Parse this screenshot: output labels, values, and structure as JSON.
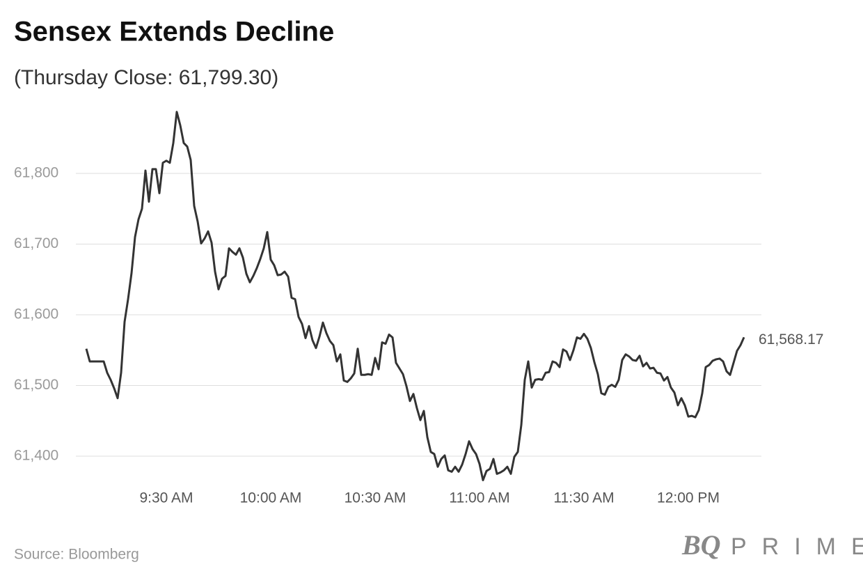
{
  "chart_data": {
    "type": "line",
    "title": "Sensex Extends Decline",
    "subtitle": "(Thursday Close: 61,799.30)",
    "source": "Source: Bloomberg",
    "brand_mark": "BQ",
    "brand_name": "PRIME",
    "end_label": "61,568.17",
    "x": [
      547,
      548,
      549,
      550,
      551,
      552,
      553,
      554,
      555,
      556,
      557,
      558,
      559,
      560,
      561,
      562,
      563,
      564,
      565,
      566,
      567,
      568,
      569,
      570,
      571,
      572,
      573,
      574,
      575,
      576,
      577,
      578,
      579,
      580,
      581,
      582,
      583,
      584,
      585,
      586,
      587,
      588,
      589,
      590,
      591,
      592,
      593,
      594,
      595,
      596,
      597,
      598,
      599,
      600,
      601,
      602,
      603,
      604,
      605,
      606,
      607,
      608,
      609,
      610,
      611,
      612,
      613,
      614,
      615,
      616,
      617,
      618,
      619,
      620,
      621,
      622,
      623,
      624,
      625,
      626,
      627,
      628,
      629,
      630,
      631,
      632,
      633,
      634,
      635,
      636,
      637,
      638,
      639,
      640,
      641,
      642,
      643,
      644,
      645,
      646,
      647,
      648,
      649,
      650,
      651,
      652,
      653,
      654,
      655,
      656,
      657,
      658,
      659,
      660,
      661,
      662,
      663,
      664,
      665,
      666,
      667,
      668,
      669,
      670,
      671,
      672,
      673,
      674,
      675,
      676,
      677,
      678,
      679,
      680,
      681,
      682,
      683,
      684,
      685,
      686,
      687,
      688,
      689,
      690,
      691,
      692,
      693,
      694,
      695,
      696,
      697,
      698,
      699,
      700,
      701,
      702,
      703,
      704,
      705,
      706,
      707,
      708,
      709,
      710,
      711,
      712,
      713,
      714,
      715,
      716,
      717,
      718,
      719,
      720,
      721,
      722,
      723,
      724,
      725,
      726,
      727,
      728,
      729,
      730,
      731,
      732,
      733,
      734,
      735,
      736
    ],
    "series": [
      {
        "name": "Sensex",
        "color": "#333333",
        "values": [
          61552,
          61534,
          61534,
          61534,
          61534,
          61534,
          61518,
          61508,
          61496,
          61482,
          61518,
          61590,
          61622,
          61659,
          61710,
          61735,
          61750,
          61804,
          61760,
          61806,
          61806,
          61772,
          61815,
          61818,
          61815,
          61843,
          61887,
          61868,
          61843,
          61838,
          61819,
          61754,
          61732,
          61701,
          61708,
          61718,
          61702,
          61661,
          61636,
          61651,
          61655,
          61694,
          61689,
          61685,
          61694,
          61681,
          61658,
          61646,
          61655,
          61666,
          61679,
          61694,
          61717,
          61678,
          61670,
          61656,
          61657,
          61661,
          61654,
          61624,
          61622,
          61597,
          61587,
          61567,
          61584,
          61564,
          61553,
          61569,
          61589,
          61574,
          61563,
          61557,
          61534,
          61544,
          61507,
          61505,
          61510,
          61517,
          61552,
          61515,
          61515,
          61516,
          61515,
          61539,
          61523,
          61561,
          61559,
          61572,
          61568,
          61532,
          61524,
          61516,
          61499,
          61478,
          61488,
          61468,
          61451,
          61464,
          61427,
          61406,
          61403,
          61385,
          61396,
          61401,
          61380,
          61378,
          61385,
          61378,
          61388,
          61403,
          61421,
          61410,
          61403,
          61389,
          61366,
          61379,
          61382,
          61396,
          61375,
          61377,
          61380,
          61385,
          61375,
          61399,
          61406,
          61444,
          61508,
          61534,
          61497,
          61508,
          61509,
          61508,
          61518,
          61519,
          61534,
          61532,
          61526,
          61551,
          61548,
          61536,
          61550,
          61568,
          61566,
          61573,
          61566,
          61553,
          61533,
          61516,
          61489,
          61487,
          61498,
          61501,
          61498,
          61508,
          61536,
          61544,
          61541,
          61536,
          61535,
          61542,
          61527,
          61532,
          61524,
          61525,
          61518,
          61517,
          61507,
          61512,
          61497,
          61490,
          61472,
          61482,
          61472,
          61456,
          61457,
          61455,
          61465,
          61489,
          61526,
          61529,
          61535,
          61537,
          61538,
          61534,
          61520,
          61515,
          61532,
          61549,
          61557,
          61568.17
        ]
      }
    ],
    "xlim": [
      544,
      741
    ],
    "xticks": [
      {
        "value": 570,
        "label": "9:30 AM"
      },
      {
        "value": 600,
        "label": "10:00 AM"
      },
      {
        "value": 630,
        "label": "10:30 AM"
      },
      {
        "value": 660,
        "label": "11:00 AM"
      },
      {
        "value": 690,
        "label": "11:30 AM"
      },
      {
        "value": 720,
        "label": "12:00 PM"
      }
    ],
    "ylim": [
      61360,
      61900
    ],
    "yticks": [
      {
        "value": 61400,
        "label": "61,400"
      },
      {
        "value": 61500,
        "label": "61,500"
      },
      {
        "value": 61600,
        "label": "61,600"
      },
      {
        "value": 61700,
        "label": "61,700"
      },
      {
        "value": 61800,
        "label": "61,800"
      }
    ],
    "grid": true
  }
}
